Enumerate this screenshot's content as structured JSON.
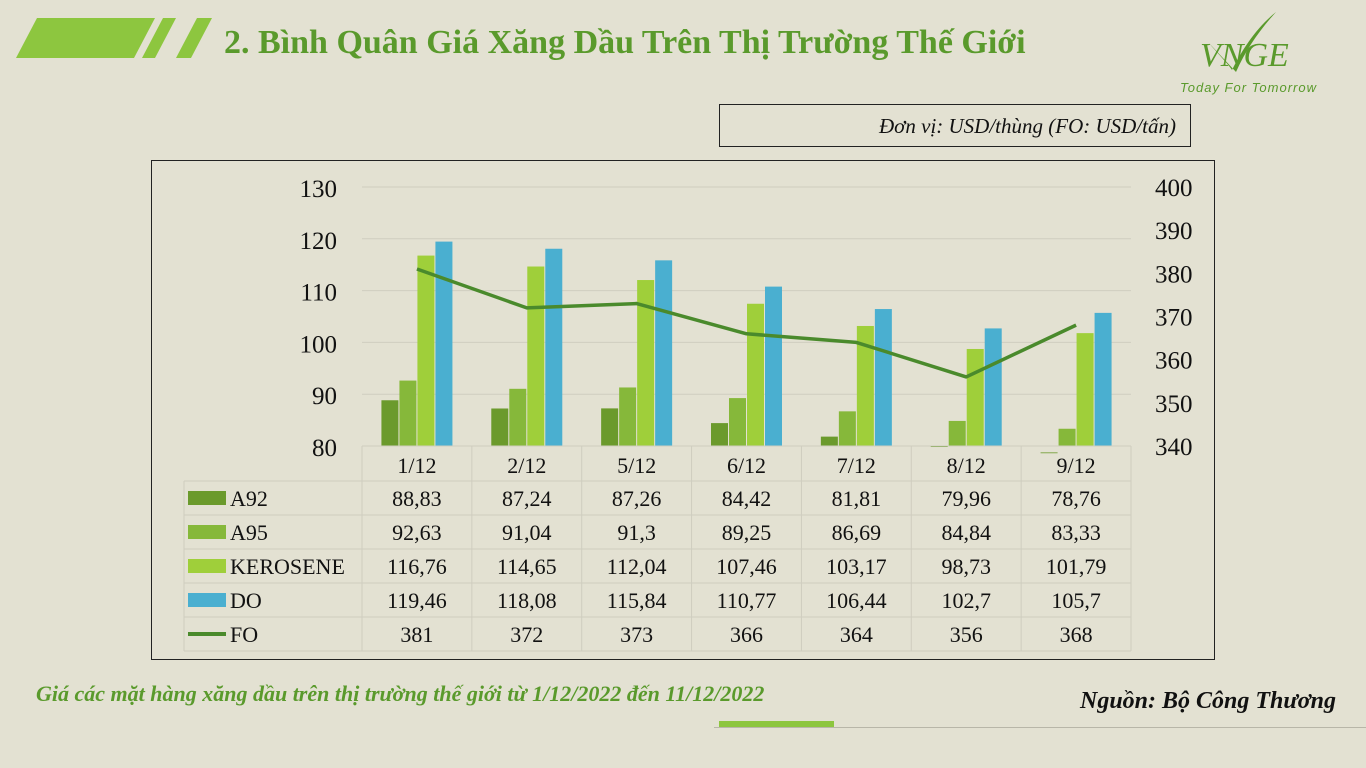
{
  "header": {
    "title": "2. Bình Quân Giá Xăng Dầu Trên Thị Trường Thế Giới",
    "logo_text": "VNGE",
    "logo_tagline": "Today For Tomorrow"
  },
  "unit_note": "Đơn vị: USD/thùng (FO: USD/tấn)",
  "caption": "Giá các mặt hàng xăng dầu trên thị trường thế giới từ 1/12/2022 đến 11/12/2022",
  "source": "Nguồn: Bộ Công Thương",
  "colors": {
    "title_green": "#5a9a2c",
    "stripe_green": "#8dc63f",
    "A92": "#6b9a2c",
    "A95": "#86b83a",
    "KEROSENE": "#9fcf3a",
    "DO": "#4aafd0",
    "FO": "#4a8a2c"
  },
  "chart_data": {
    "type": "bar",
    "categories": [
      "1/12",
      "2/12",
      "5/12",
      "6/12",
      "7/12",
      "8/12",
      "9/12"
    ],
    "series": [
      {
        "name": "A92",
        "kind": "bar",
        "axis": "left",
        "values": [
          88.83,
          87.24,
          87.26,
          84.42,
          81.81,
          79.96,
          78.76
        ],
        "labels": [
          "88,83",
          "87,24",
          "87,26",
          "84,42",
          "81,81",
          "79,96",
          "78,76"
        ]
      },
      {
        "name": "A95",
        "kind": "bar",
        "axis": "left",
        "values": [
          92.63,
          91.04,
          91.3,
          89.25,
          86.69,
          84.84,
          83.33
        ],
        "labels": [
          "92,63",
          "91,04",
          "91,3",
          "89,25",
          "86,69",
          "84,84",
          "83,33"
        ]
      },
      {
        "name": "KEROSENE",
        "kind": "bar",
        "axis": "left",
        "values": [
          116.76,
          114.65,
          112.04,
          107.46,
          103.17,
          98.73,
          101.79
        ],
        "labels": [
          "116,76",
          "114,65",
          "112,04",
          "107,46",
          "103,17",
          "98,73",
          "101,79"
        ]
      },
      {
        "name": "DO",
        "kind": "bar",
        "axis": "left",
        "values": [
          119.46,
          118.08,
          115.84,
          110.77,
          106.44,
          102.7,
          105.7
        ],
        "labels": [
          "119,46",
          "118,08",
          "115,84",
          "110,77",
          "106,44",
          "102,7",
          "105,7"
        ]
      },
      {
        "name": "FO",
        "kind": "line",
        "axis": "right",
        "values": [
          381,
          372,
          373,
          366,
          364,
          356,
          368
        ],
        "labels": [
          "381",
          "372",
          "373",
          "366",
          "364",
          "356",
          "368"
        ]
      }
    ],
    "y_left": {
      "min": 80,
      "max": 130,
      "ticks": [
        80,
        90,
        100,
        110,
        120,
        130
      ]
    },
    "y_right": {
      "min": 340,
      "max": 400,
      "ticks": [
        340,
        350,
        360,
        370,
        380,
        390,
        400
      ]
    },
    "grid": true,
    "data_table": true
  }
}
